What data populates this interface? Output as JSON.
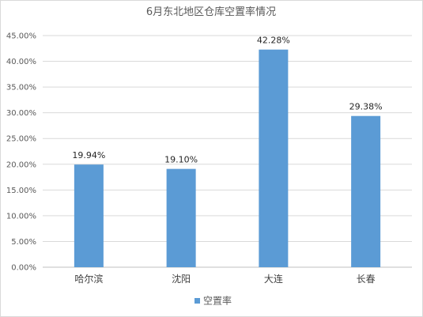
{
  "chart_data": {
    "type": "bar",
    "title": "6月东北地区仓库空置率情况",
    "categories": [
      "哈尔滨",
      "沈阳",
      "大连",
      "长春"
    ],
    "series": [
      {
        "name": "空置率",
        "values": [
          19.94,
          19.1,
          42.28,
          29.38
        ],
        "color": "#5b9bd5"
      }
    ],
    "data_labels": [
      "19.94%",
      "19.10%",
      "42.28%",
      "29.38%"
    ],
    "y_ticks": [
      "0.00%",
      "5.00%",
      "10.00%",
      "15.00%",
      "20.00%",
      "25.00%",
      "30.00%",
      "35.00%",
      "40.00%",
      "45.00%"
    ],
    "ylim": [
      0,
      45
    ],
    "grid": true,
    "legend": "bottom",
    "xlabel": "",
    "ylabel": ""
  }
}
